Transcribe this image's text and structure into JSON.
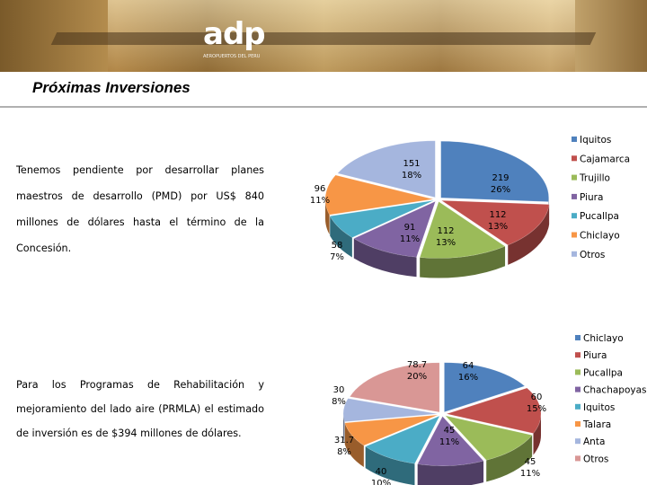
{
  "logo": {
    "name": "adp",
    "subtitle": "AEROPUERTOS DEL PERU"
  },
  "title": "Próximas Inversiones",
  "paragraph1": [
    "Tenemos pendiente por desarrollar planes",
    "maestros de desarrollo (PMD) por US$ 840",
    "millones de dólares hasta el término de la",
    "Concesión."
  ],
  "paragraph2": [
    "Para los Programas de Rehabilitación y",
    "mejoramiento del lado aire (PRMLA) el estimado",
    "de inversión es de $394 millones de dólares."
  ],
  "chart_data": [
    {
      "type": "pie",
      "categories": [
        "Iquitos",
        "Cajamarca",
        "Trujillo",
        "Piura",
        "Pucallpa",
        "Chiclayo",
        "Otros"
      ],
      "values": [
        219,
        112,
        112,
        91,
        58,
        96,
        151
      ],
      "labels": [
        [
          "219",
          "26%"
        ],
        [
          "112",
          "13%"
        ],
        [
          "112",
          "13%"
        ],
        [
          "91",
          "11%"
        ],
        [
          "58",
          "7%"
        ],
        [
          "96",
          "11%"
        ],
        [
          "151",
          "18%"
        ]
      ],
      "colors": [
        "#4f81bd",
        "#c0504d",
        "#9bbb59",
        "#8064a2",
        "#4bacc6",
        "#f79646",
        "#a5b6de"
      ],
      "legend": "right"
    },
    {
      "type": "pie",
      "categories": [
        "Chiclayo",
        "Piura",
        "Pucallpa",
        "Chachapoyas",
        "Iquitos",
        "Talara",
        "Anta",
        "Otros"
      ],
      "values": [
        64,
        60,
        45,
        45,
        40,
        31.7,
        30,
        78.7
      ],
      "labels": [
        [
          "64",
          "16%"
        ],
        [
          "60",
          "15%"
        ],
        [
          "45",
          "11%"
        ],
        [
          "45",
          "11%"
        ],
        [
          "40",
          "10%"
        ],
        [
          "31.7",
          "8%"
        ],
        [
          "30",
          "8%"
        ],
        [
          "78.7",
          "20%"
        ]
      ],
      "colors": [
        "#4f81bd",
        "#c0504d",
        "#9bbb59",
        "#8064a2",
        "#4bacc6",
        "#f79646",
        "#a5b6de",
        "#d99795"
      ],
      "legend": "right"
    }
  ]
}
